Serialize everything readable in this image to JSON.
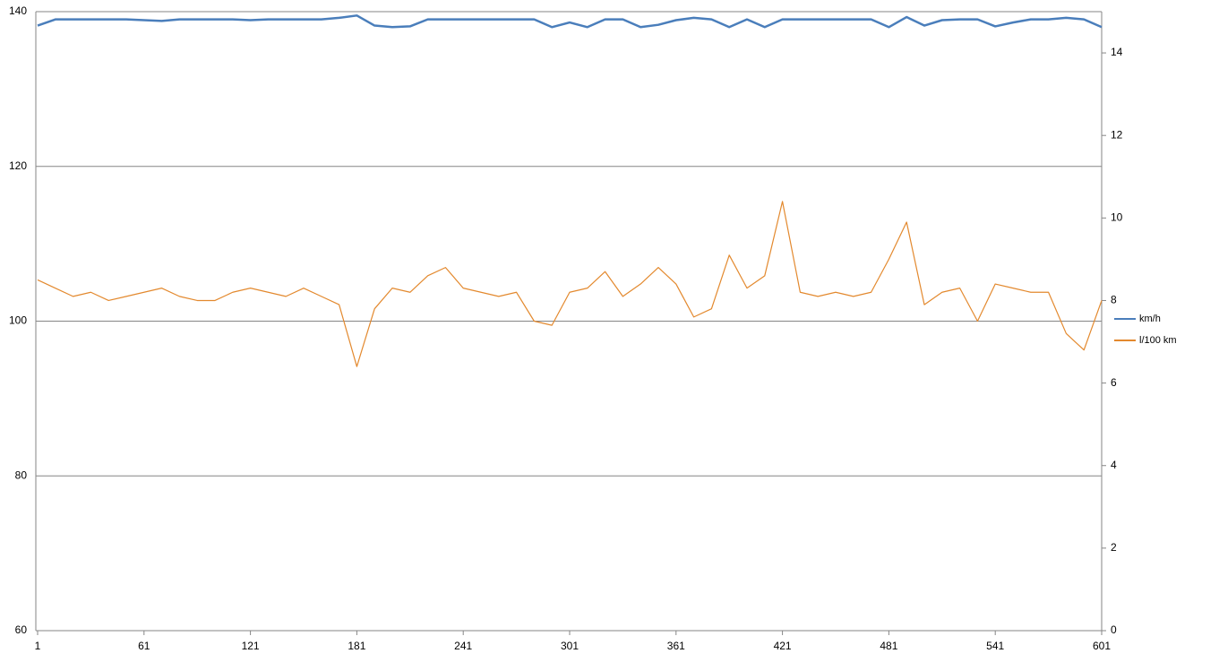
{
  "chart_data": {
    "type": "line",
    "x": [
      1,
      11,
      21,
      31,
      41,
      51,
      61,
      71,
      81,
      91,
      101,
      111,
      121,
      131,
      141,
      151,
      161,
      171,
      181,
      191,
      201,
      211,
      221,
      231,
      241,
      251,
      261,
      271,
      281,
      291,
      301,
      311,
      321,
      331,
      341,
      351,
      361,
      371,
      381,
      391,
      401,
      411,
      421,
      431,
      441,
      451,
      461,
      471,
      481,
      491,
      501,
      511,
      521,
      531,
      541,
      551,
      561,
      571,
      581,
      591,
      601
    ],
    "series": [
      {
        "name": "km/h",
        "color": "#4a7ebb",
        "values": [
          138.2,
          139,
          139,
          139,
          139,
          139,
          138.9,
          138.8,
          139,
          139,
          139,
          139,
          138.9,
          139,
          139,
          139,
          139,
          139.2,
          139.5,
          138.2,
          138,
          138.1,
          139,
          139,
          139,
          139,
          139,
          139,
          139,
          138,
          138.6,
          138,
          139,
          139,
          138,
          138.3,
          138.9,
          139.2,
          139,
          138,
          139,
          138,
          139,
          139,
          139,
          139,
          139,
          139,
          138,
          139.3,
          138.2,
          138.9,
          139,
          139,
          138.1,
          138.6,
          139,
          139,
          139.2,
          139,
          138
        ]
      },
      {
        "name": "l/100 km",
        "color": "#e3892e",
        "axis": "y2",
        "values": [
          8.5,
          8.3,
          8.1,
          8.2,
          8.0,
          8.1,
          8.2,
          8.3,
          8.1,
          8.0,
          8.0,
          8.2,
          8.3,
          8.2,
          8.1,
          8.3,
          8.1,
          7.9,
          6.4,
          7.8,
          8.3,
          8.2,
          8.6,
          8.8,
          8.3,
          8.2,
          8.1,
          8.2,
          7.5,
          7.4,
          8.2,
          8.3,
          8.7,
          8.1,
          8.4,
          8.8,
          8.4,
          7.6,
          7.8,
          9.1,
          8.3,
          8.6,
          10.4,
          8.2,
          8.1,
          8.2,
          8.1,
          8.2,
          9.0,
          9.9,
          7.9,
          8.2,
          8.3,
          7.5,
          8.4,
          8.3,
          8.2,
          8.2,
          7.2,
          6.8,
          8.0
        ]
      }
    ],
    "xlim": [
      1,
      601
    ],
    "xticks": [
      1,
      61,
      121,
      181,
      241,
      301,
      361,
      421,
      481,
      541,
      601
    ],
    "ylim": [
      60,
      140
    ],
    "yticks": [
      60,
      80,
      100,
      120,
      140
    ],
    "y2lim": [
      0,
      15
    ],
    "y2ticks": [
      0,
      2,
      4,
      6,
      8,
      10,
      12,
      14
    ],
    "grid": true,
    "legend": "right"
  }
}
